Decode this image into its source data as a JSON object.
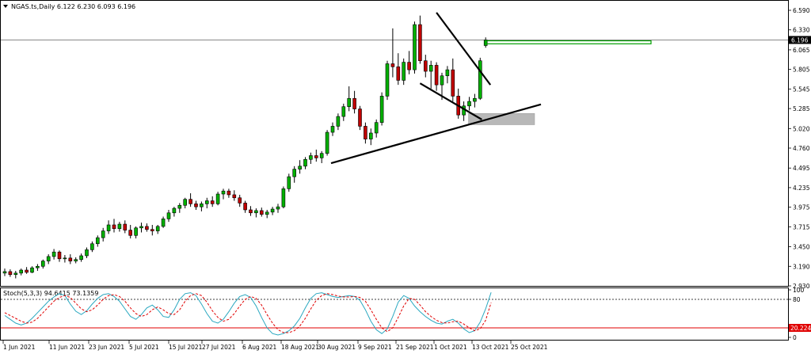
{
  "header": {
    "symbol_text": "NGAS.ts,Daily  6.122 6.230 6.093 6.196"
  },
  "price_badge": {
    "text": "6.196",
    "bg": "#000000",
    "fg": "#ffffff"
  },
  "stoch_header": {
    "text": "Stoch(5,3,3) 94.6415 73.1359"
  },
  "stoch_badge": {
    "text": "20.2247",
    "bg": "#e00000",
    "fg": "#ffffff"
  },
  "colors": {
    "bull": "#00b000",
    "bear": "#c00000",
    "wick": "#000000",
    "trend": "#000000",
    "zone": "#b8b8b8",
    "target": "#00a000",
    "stoch_main": "#2aa8c0",
    "stoch_signal": "#e00000"
  },
  "chart_data": [
    {
      "type": "candlestick",
      "title": "NGAS.ts,Daily",
      "ylim": [
        2.93,
        6.59
      ],
      "y_ticks": [
        "6.590",
        "6.330",
        "6.065",
        "5.805",
        "5.545",
        "5.285",
        "5.020",
        "4.760",
        "4.495",
        "4.235",
        "3.975",
        "3.715",
        "3.450",
        "3.190",
        "2.930"
      ],
      "x_tick_labels": [
        "1 Jun 2021",
        "11 Jun 2021",
        "23 Jun 2021",
        "5 Jul 2021",
        "15 Jul 2021",
        "27 Jul 2021",
        "6 Aug 2021",
        "18 Aug 2021",
        "30 Aug 2021",
        "9 Sep 2021",
        "21 Sep 2021",
        "1 Oct 2021",
        "13 Oct 2021",
        "25 Oct 2021"
      ],
      "current_price": 6.196,
      "candles": [
        {
          "o": 3.1,
          "h": 3.16,
          "l": 3.06,
          "c": 3.12
        },
        {
          "o": 3.12,
          "h": 3.15,
          "l": 3.05,
          "c": 3.08
        },
        {
          "o": 3.08,
          "h": 3.13,
          "l": 3.03,
          "c": 3.1
        },
        {
          "o": 3.1,
          "h": 3.16,
          "l": 3.07,
          "c": 3.14
        },
        {
          "o": 3.14,
          "h": 3.18,
          "l": 3.09,
          "c": 3.11
        },
        {
          "o": 3.11,
          "h": 3.19,
          "l": 3.1,
          "c": 3.17
        },
        {
          "o": 3.17,
          "h": 3.22,
          "l": 3.13,
          "c": 3.19
        },
        {
          "o": 3.19,
          "h": 3.28,
          "l": 3.16,
          "c": 3.26
        },
        {
          "o": 3.26,
          "h": 3.35,
          "l": 3.22,
          "c": 3.32
        },
        {
          "o": 3.32,
          "h": 3.42,
          "l": 3.28,
          "c": 3.38
        },
        {
          "o": 3.38,
          "h": 3.4,
          "l": 3.25,
          "c": 3.29
        },
        {
          "o": 3.29,
          "h": 3.34,
          "l": 3.24,
          "c": 3.3
        },
        {
          "o": 3.3,
          "h": 3.35,
          "l": 3.22,
          "c": 3.26
        },
        {
          "o": 3.26,
          "h": 3.31,
          "l": 3.23,
          "c": 3.28
        },
        {
          "o": 3.28,
          "h": 3.36,
          "l": 3.25,
          "c": 3.33
        },
        {
          "o": 3.33,
          "h": 3.44,
          "l": 3.3,
          "c": 3.41
        },
        {
          "o": 3.41,
          "h": 3.52,
          "l": 3.38,
          "c": 3.49
        },
        {
          "o": 3.49,
          "h": 3.6,
          "l": 3.45,
          "c": 3.57
        },
        {
          "o": 3.57,
          "h": 3.7,
          "l": 3.52,
          "c": 3.66
        },
        {
          "o": 3.66,
          "h": 3.8,
          "l": 3.62,
          "c": 3.74
        },
        {
          "o": 3.74,
          "h": 3.82,
          "l": 3.64,
          "c": 3.69
        },
        {
          "o": 3.69,
          "h": 3.78,
          "l": 3.65,
          "c": 3.75
        },
        {
          "o": 3.75,
          "h": 3.8,
          "l": 3.63,
          "c": 3.67
        },
        {
          "o": 3.67,
          "h": 3.74,
          "l": 3.56,
          "c": 3.6
        },
        {
          "o": 3.6,
          "h": 3.72,
          "l": 3.56,
          "c": 3.7
        },
        {
          "o": 3.7,
          "h": 3.77,
          "l": 3.64,
          "c": 3.72
        },
        {
          "o": 3.72,
          "h": 3.76,
          "l": 3.65,
          "c": 3.68
        },
        {
          "o": 3.68,
          "h": 3.74,
          "l": 3.6,
          "c": 3.66
        },
        {
          "o": 3.66,
          "h": 3.74,
          "l": 3.62,
          "c": 3.72
        },
        {
          "o": 3.72,
          "h": 3.85,
          "l": 3.7,
          "c": 3.82
        },
        {
          "o": 3.82,
          "h": 3.94,
          "l": 3.78,
          "c": 3.9
        },
        {
          "o": 3.9,
          "h": 3.98,
          "l": 3.85,
          "c": 3.96
        },
        {
          "o": 3.96,
          "h": 4.03,
          "l": 3.9,
          "c": 4.0
        },
        {
          "o": 4.0,
          "h": 4.1,
          "l": 3.96,
          "c": 4.08
        },
        {
          "o": 4.08,
          "h": 4.16,
          "l": 3.98,
          "c": 4.02
        },
        {
          "o": 4.02,
          "h": 4.06,
          "l": 3.94,
          "c": 3.98
        },
        {
          "o": 3.98,
          "h": 4.05,
          "l": 3.92,
          "c": 4.02
        },
        {
          "o": 4.02,
          "h": 4.1,
          "l": 3.96,
          "c": 4.06
        },
        {
          "o": 4.06,
          "h": 4.12,
          "l": 3.98,
          "c": 4.02
        },
        {
          "o": 4.02,
          "h": 4.18,
          "l": 4.0,
          "c": 4.15
        },
        {
          "o": 4.15,
          "h": 4.22,
          "l": 4.08,
          "c": 4.19
        },
        {
          "o": 4.19,
          "h": 4.22,
          "l": 4.1,
          "c": 4.14
        },
        {
          "o": 4.14,
          "h": 4.2,
          "l": 4.06,
          "c": 4.1
        },
        {
          "o": 4.1,
          "h": 4.14,
          "l": 3.98,
          "c": 4.03
        },
        {
          "o": 4.03,
          "h": 4.06,
          "l": 3.9,
          "c": 3.94
        },
        {
          "o": 3.94,
          "h": 3.99,
          "l": 3.86,
          "c": 3.9
        },
        {
          "o": 3.9,
          "h": 3.96,
          "l": 3.84,
          "c": 3.93
        },
        {
          "o": 3.93,
          "h": 3.97,
          "l": 3.85,
          "c": 3.88
        },
        {
          "o": 3.88,
          "h": 3.94,
          "l": 3.83,
          "c": 3.91
        },
        {
          "o": 3.91,
          "h": 3.98,
          "l": 3.87,
          "c": 3.95
        },
        {
          "o": 3.95,
          "h": 4.02,
          "l": 3.9,
          "c": 3.98
        },
        {
          "o": 3.98,
          "h": 4.25,
          "l": 3.96,
          "c": 4.22
        },
        {
          "o": 4.22,
          "h": 4.42,
          "l": 4.18,
          "c": 4.38
        },
        {
          "o": 4.38,
          "h": 4.52,
          "l": 4.3,
          "c": 4.48
        },
        {
          "o": 4.48,
          "h": 4.6,
          "l": 4.42,
          "c": 4.52
        },
        {
          "o": 4.52,
          "h": 4.64,
          "l": 4.48,
          "c": 4.61
        },
        {
          "o": 4.61,
          "h": 4.7,
          "l": 4.55,
          "c": 4.66
        },
        {
          "o": 4.66,
          "h": 4.74,
          "l": 4.58,
          "c": 4.63
        },
        {
          "o": 4.63,
          "h": 4.72,
          "l": 4.56,
          "c": 4.69
        },
        {
          "o": 4.69,
          "h": 5.0,
          "l": 4.66,
          "c": 4.97
        },
        {
          "o": 4.97,
          "h": 5.1,
          "l": 4.92,
          "c": 5.05
        },
        {
          "o": 5.05,
          "h": 5.22,
          "l": 5.0,
          "c": 5.18
        },
        {
          "o": 5.18,
          "h": 5.35,
          "l": 5.12,
          "c": 5.31
        },
        {
          "o": 5.31,
          "h": 5.58,
          "l": 5.25,
          "c": 5.42
        },
        {
          "o": 5.42,
          "h": 5.52,
          "l": 5.22,
          "c": 5.28
        },
        {
          "o": 5.28,
          "h": 5.32,
          "l": 5.0,
          "c": 5.05
        },
        {
          "o": 5.05,
          "h": 5.1,
          "l": 4.82,
          "c": 4.88
        },
        {
          "o": 4.88,
          "h": 5.02,
          "l": 4.8,
          "c": 4.96
        },
        {
          "o": 4.96,
          "h": 5.14,
          "l": 4.9,
          "c": 5.1
        },
        {
          "o": 5.1,
          "h": 5.5,
          "l": 5.06,
          "c": 5.45
        },
        {
          "o": 5.45,
          "h": 5.92,
          "l": 5.4,
          "c": 5.88
        },
        {
          "o": 5.88,
          "h": 6.35,
          "l": 5.7,
          "c": 5.84
        },
        {
          "o": 5.84,
          "h": 6.02,
          "l": 5.6,
          "c": 5.66
        },
        {
          "o": 5.66,
          "h": 5.95,
          "l": 5.6,
          "c": 5.9
        },
        {
          "o": 5.9,
          "h": 6.05,
          "l": 5.74,
          "c": 5.8
        },
        {
          "o": 5.8,
          "h": 6.44,
          "l": 5.75,
          "c": 6.4
        },
        {
          "o": 6.4,
          "h": 6.52,
          "l": 5.88,
          "c": 5.92
        },
        {
          "o": 5.92,
          "h": 6.0,
          "l": 5.7,
          "c": 5.78
        },
        {
          "o": 5.78,
          "h": 5.92,
          "l": 5.55,
          "c": 5.86
        },
        {
          "o": 5.86,
          "h": 5.9,
          "l": 5.52,
          "c": 5.6
        },
        {
          "o": 5.6,
          "h": 5.76,
          "l": 5.4,
          "c": 5.72
        },
        {
          "o": 5.72,
          "h": 5.85,
          "l": 5.62,
          "c": 5.8
        },
        {
          "o": 5.8,
          "h": 5.95,
          "l": 5.38,
          "c": 5.45
        },
        {
          "o": 5.45,
          "h": 5.55,
          "l": 5.15,
          "c": 5.2
        },
        {
          "o": 5.2,
          "h": 5.38,
          "l": 5.12,
          "c": 5.32
        },
        {
          "o": 5.32,
          "h": 5.44,
          "l": 5.26,
          "c": 5.38
        },
        {
          "o": 5.38,
          "h": 5.48,
          "l": 5.3,
          "c": 5.42
        },
        {
          "o": 5.42,
          "h": 5.96,
          "l": 5.4,
          "c": 5.92
        },
        {
          "o": 6.122,
          "h": 6.23,
          "l": 6.093,
          "c": 6.196
        }
      ]
    },
    {
      "type": "line",
      "title": "Stoch(5,3,3)",
      "ylim": [
        0,
        100
      ],
      "y_ticks": [
        "100",
        "80",
        "0"
      ],
      "levels": [
        80,
        20
      ],
      "series": [
        {
          "name": "94.6415",
          "values": [
            46,
            38,
            30,
            26,
            30,
            40,
            52,
            64,
            76,
            85,
            92,
            88,
            70,
            55,
            48,
            56,
            70,
            82,
            90,
            92,
            86,
            76,
            60,
            44,
            38,
            48,
            62,
            68,
            58,
            44,
            42,
            58,
            80,
            92,
            94,
            88,
            70,
            50,
            34,
            30,
            38,
            54,
            72,
            86,
            90,
            84,
            66,
            42,
            20,
            8,
            5,
            8,
            14,
            24,
            40,
            62,
            82,
            92,
            94,
            90,
            86,
            84,
            86,
            88,
            86,
            78,
            58,
            34,
            16,
            8,
            18,
            44,
            74,
            88,
            82,
            66,
            54,
            44,
            36,
            30,
            28,
            34,
            38,
            30,
            18,
            10,
            14,
            32,
            60,
            94.6415
          ]
        },
        {
          "name": "73.1359",
          "values": [
            52,
            46,
            40,
            34,
            30,
            32,
            40,
            52,
            64,
            76,
            84,
            88,
            84,
            72,
            60,
            54,
            58,
            68,
            80,
            88,
            90,
            86,
            76,
            62,
            50,
            44,
            48,
            58,
            64,
            58,
            50,
            48,
            58,
            76,
            88,
            92,
            88,
            74,
            56,
            42,
            34,
            38,
            50,
            66,
            80,
            86,
            82,
            68,
            48,
            30,
            16,
            10,
            10,
            14,
            24,
            40,
            60,
            78,
            88,
            92,
            90,
            87,
            85,
            85,
            86,
            84,
            76,
            58,
            38,
            20,
            12,
            20,
            42,
            66,
            82,
            80,
            68,
            54,
            44,
            36,
            31,
            30,
            33,
            34,
            28,
            20,
            14,
            18,
            36,
            73.1359
          ]
        }
      ]
    }
  ]
}
